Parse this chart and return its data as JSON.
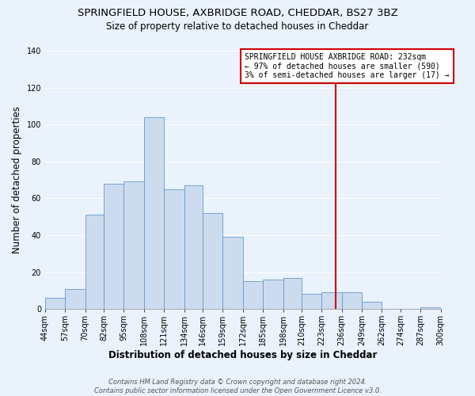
{
  "title": "SPRINGFIELD HOUSE, AXBRIDGE ROAD, CHEDDAR, BS27 3BZ",
  "subtitle": "Size of property relative to detached houses in Cheddar",
  "xlabel": "Distribution of detached houses by size in Cheddar",
  "ylabel": "Number of detached properties",
  "bar_heights": [
    6,
    11,
    51,
    68,
    69,
    104,
    65,
    67,
    52,
    39,
    15,
    16,
    17,
    8,
    9,
    9,
    4,
    0,
    0,
    1
  ],
  "bar_color": "#ccdcee",
  "bar_edge_color": "#6699cc",
  "tick_labels": [
    "44sqm",
    "57sqm",
    "70sqm",
    "82sqm",
    "95sqm",
    "108sqm",
    "121sqm",
    "134sqm",
    "146sqm",
    "159sqm",
    "172sqm",
    "185sqm",
    "198sqm",
    "210sqm",
    "223sqm",
    "236sqm",
    "249sqm",
    "262sqm",
    "274sqm",
    "287sqm",
    "300sqm"
  ],
  "bin_edges": [
    44,
    57,
    70,
    82,
    95,
    108,
    121,
    134,
    146,
    159,
    172,
    185,
    198,
    210,
    223,
    236,
    249,
    262,
    274,
    287,
    300
  ],
  "ylim": [
    0,
    140
  ],
  "yticks": [
    0,
    20,
    40,
    60,
    80,
    100,
    120,
    140
  ],
  "vline_x": 232,
  "vline_color": "#cc0000",
  "annotation_line1": "SPRINGFIELD HOUSE AXBRIDGE ROAD: 232sqm",
  "annotation_line2": "← 97% of detached houses are smaller (590)",
  "annotation_line3": "3% of semi-detached houses are larger (17) →",
  "annotation_box_color": "#cc0000",
  "annotation_bg_color": "#ffffff",
  "footer_line1": "Contains HM Land Registry data © Crown copyright and database right 2024.",
  "footer_line2": "Contains public sector information licensed under the Open Government Licence v3.0.",
  "background_color": "#eaf2fb",
  "plot_bg_color": "#eaf2fb",
  "grid_color": "#ffffff",
  "title_fontsize": 9.5,
  "subtitle_fontsize": 8.5,
  "axis_label_fontsize": 8.5,
  "tick_fontsize": 7,
  "annotation_fontsize": 7,
  "footer_fontsize": 6
}
